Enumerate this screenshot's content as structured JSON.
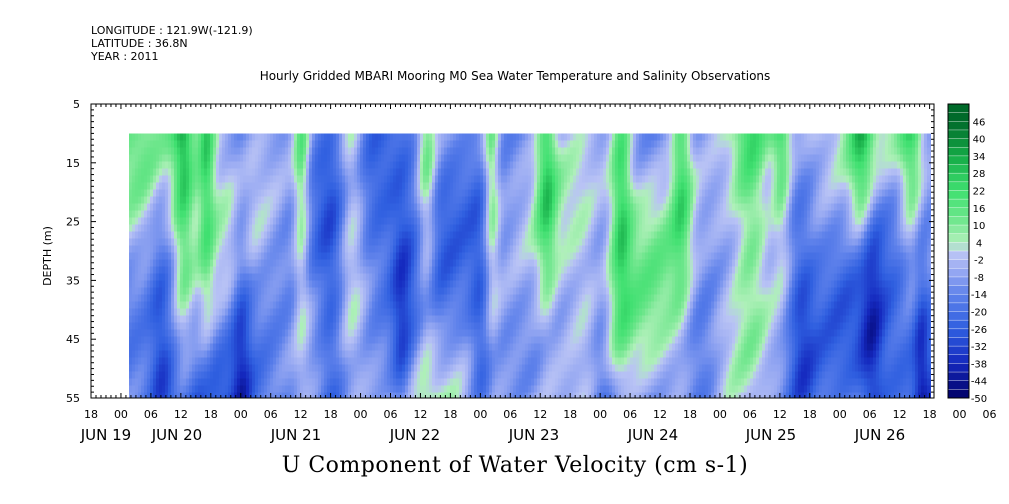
{
  "header": {
    "longitude": "LONGITUDE : 121.9W(-121.9)",
    "latitude": "LATITUDE : 36.8N",
    "year": "YEAR : 2011"
  },
  "title": "Hourly Gridded MBARI Mooring M0 Sea Water Temperature and Salinity Observations",
  "bottom_title": "U Component of Water Velocity (cm s-1)",
  "chart_data": {
    "type": "heatmap",
    "ylabel": "DEPTH (m)",
    "y_ticks": [
      5,
      15,
      25,
      35,
      45,
      55
    ],
    "y_range": [
      5,
      55
    ],
    "data_depth_range": [
      10,
      55
    ],
    "hour_tick_labels": [
      "18",
      "00",
      "06",
      "12",
      "18",
      "00",
      "06",
      "12",
      "18",
      "00",
      "06",
      "12",
      "18",
      "00",
      "06",
      "12",
      "18",
      "00",
      "06",
      "12",
      "18",
      "00",
      "06",
      "12",
      "18",
      "00",
      "06",
      "12",
      "18",
      "00",
      "06",
      "12",
      "18"
    ],
    "day_labels": [
      "JUN 19",
      "JUN 20",
      "JUN 21",
      "JUN 22",
      "JUN 23",
      "JUN 24",
      "JUN 25",
      "JUN 26"
    ],
    "colorbar": {
      "levels": [
        -50,
        -44,
        -38,
        -32,
        -26,
        -20,
        -14,
        -8,
        -2,
        4,
        10,
        16,
        22,
        28,
        34,
        40,
        46
      ],
      "labels": [
        "46",
        "40",
        "34",
        "28",
        "22",
        "16",
        "10",
        "4",
        "-2",
        "-8",
        "-14",
        "-20",
        "-26",
        "-32",
        "-38",
        "-44",
        "-50"
      ],
      "range": [
        -50,
        52
      ]
    },
    "colors": {
      "strong_negative": "#000066",
      "negative": "#2f5fe0",
      "weak_negative": "#a9b4f2",
      "weak_positive": "#a9f0b4",
      "positive": "#3fe070",
      "strong_positive": "#006a2a"
    }
  }
}
